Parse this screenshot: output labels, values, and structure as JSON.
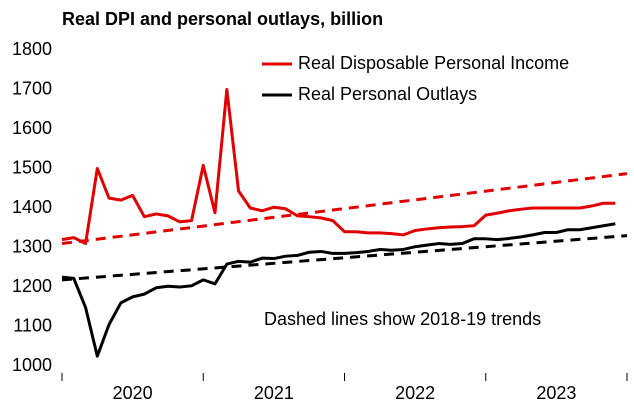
{
  "chart_data": {
    "type": "line",
    "title": "Real DPI and personal outlays, billion",
    "annotation": "Dashed lines show 2018-19 trends",
    "x": [
      2020,
      2020.083,
      2020.167,
      2020.25,
      2020.333,
      2020.417,
      2020.5,
      2020.583,
      2020.667,
      2020.75,
      2020.833,
      2020.917,
      2021,
      2021.083,
      2021.167,
      2021.25,
      2021.333,
      2021.417,
      2021.5,
      2021.583,
      2021.667,
      2021.75,
      2021.833,
      2021.917,
      2022,
      2022.083,
      2022.167,
      2022.25,
      2022.333,
      2022.417,
      2022.5,
      2022.583,
      2022.667,
      2022.75,
      2022.833,
      2022.917,
      2023,
      2023.083,
      2023.167,
      2023.25,
      2023.333,
      2023.417,
      2023.5,
      2023.583,
      2023.667,
      2023.75,
      2023.833,
      2023.917
    ],
    "series": [
      {
        "name": "Real Disposable Personal Income",
        "color": "#e00000",
        "values": [
          1320,
          1325,
          1310,
          1500,
          1425,
          1420,
          1432,
          1378,
          1385,
          1380,
          1365,
          1368,
          1508,
          1388,
          1700,
          1443,
          1400,
          1393,
          1402,
          1398,
          1380,
          1378,
          1375,
          1368,
          1340,
          1340,
          1337,
          1337,
          1335,
          1332,
          1343,
          1347,
          1350,
          1352,
          1353,
          1355,
          1382,
          1387,
          1393,
          1397,
          1400,
          1400,
          1400,
          1400,
          1400,
          1405,
          1412,
          1412
        ]
      },
      {
        "name": "Real Personal Outlays",
        "color": "#000000",
        "values": [
          1225,
          1222,
          1148,
          1025,
          1105,
          1160,
          1175,
          1182,
          1198,
          1202,
          1200,
          1203,
          1218,
          1208,
          1258,
          1265,
          1263,
          1273,
          1272,
          1278,
          1280,
          1288,
          1290,
          1285,
          1285,
          1287,
          1290,
          1295,
          1293,
          1295,
          1302,
          1306,
          1310,
          1308,
          1310,
          1322,
          1322,
          1320,
          1323,
          1327,
          1332,
          1338,
          1338,
          1345,
          1345,
          1350,
          1355,
          1360
        ]
      }
    ],
    "trend_lines": [
      {
        "color": "#e00000",
        "x": [
          2020,
          2024
        ],
        "values": [
          1310,
          1487
        ],
        "dashed": true
      },
      {
        "color": "#000000",
        "x": [
          2020,
          2024
        ],
        "values": [
          1218,
          1330
        ],
        "dashed": true
      }
    ],
    "xlim": [
      2020,
      2024
    ],
    "xticks": [
      2020,
      2021,
      2022,
      2023,
      2024
    ],
    "x_labels": [
      {
        "value": 2020.5,
        "label": "2020"
      },
      {
        "value": 2021.5,
        "label": "2021"
      },
      {
        "value": 2022.5,
        "label": "2022"
      },
      {
        "value": 2023.5,
        "label": "2023"
      }
    ],
    "ylim": [
      1000,
      1800
    ],
    "yticks": [
      1000,
      1100,
      1200,
      1300,
      1400,
      1500,
      1600,
      1700,
      1800
    ],
    "grid": false,
    "legend": "top-right"
  }
}
